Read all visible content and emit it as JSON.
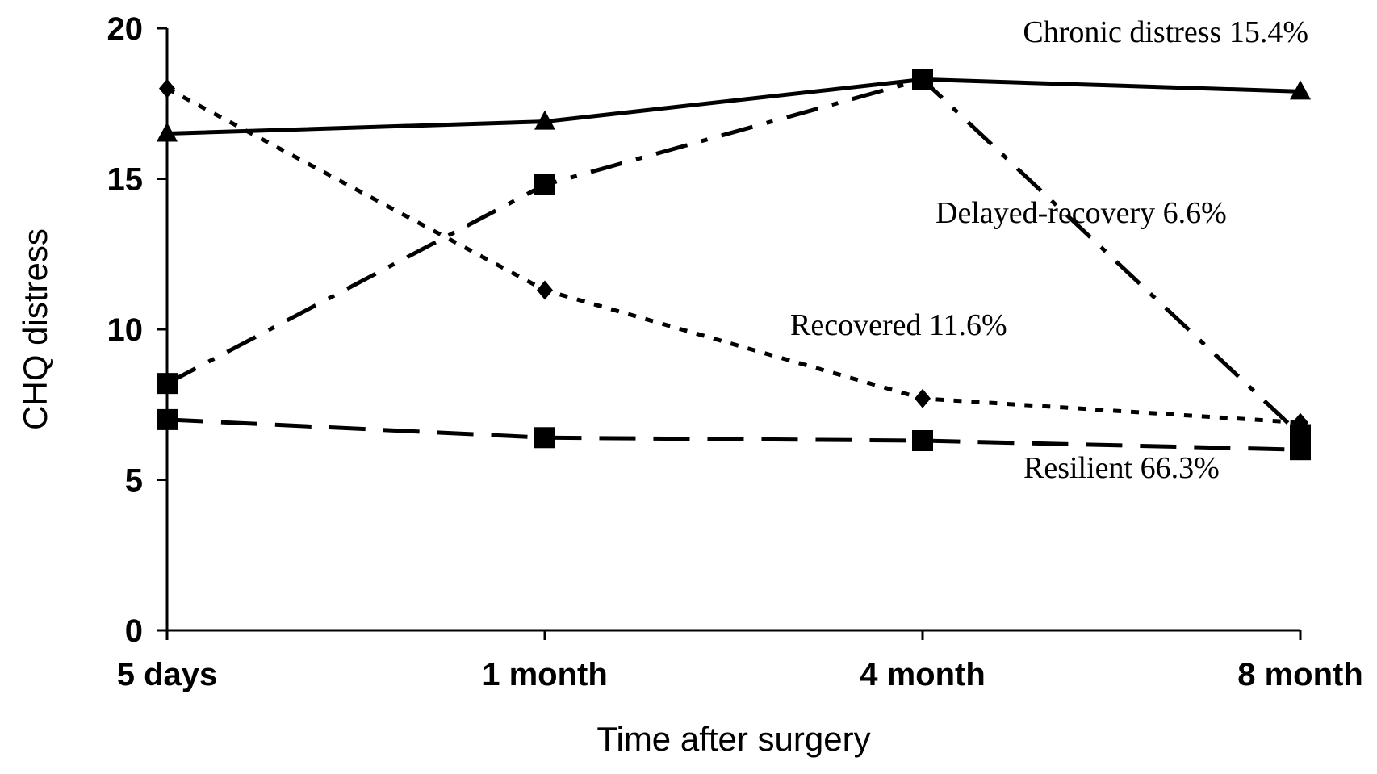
{
  "chart_data": {
    "type": "line",
    "x_label": "Time after surgery",
    "y_label": "CHQ distress",
    "categories": [
      "5 days",
      "1 month",
      "4 month",
      "8 month"
    ],
    "ylim": [
      0,
      20
    ],
    "yticks": [
      0,
      5,
      10,
      15,
      20
    ],
    "series": [
      {
        "name": "Chronic distress 15.4%",
        "color": "#000000",
        "line_style": "solid",
        "marker": "triangle",
        "values": [
          16.5,
          16.9,
          18.3,
          17.9
        ]
      },
      {
        "name": "Delayed-recovery 6.6%",
        "color": "#000000",
        "line_style": "dashdot",
        "marker": "square",
        "values": [
          8.2,
          14.8,
          18.3,
          6.5
        ]
      },
      {
        "name": "Recovered 11.6%",
        "color": "#000000",
        "line_style": "dotted",
        "marker": "diamond",
        "values": [
          18.0,
          11.3,
          7.7,
          6.9
        ]
      },
      {
        "name": "Resilient 66.3%",
        "color": "#000000",
        "line_style": "dashed",
        "marker": "square",
        "values": [
          7.0,
          6.4,
          6.3,
          6.0
        ]
      }
    ]
  }
}
